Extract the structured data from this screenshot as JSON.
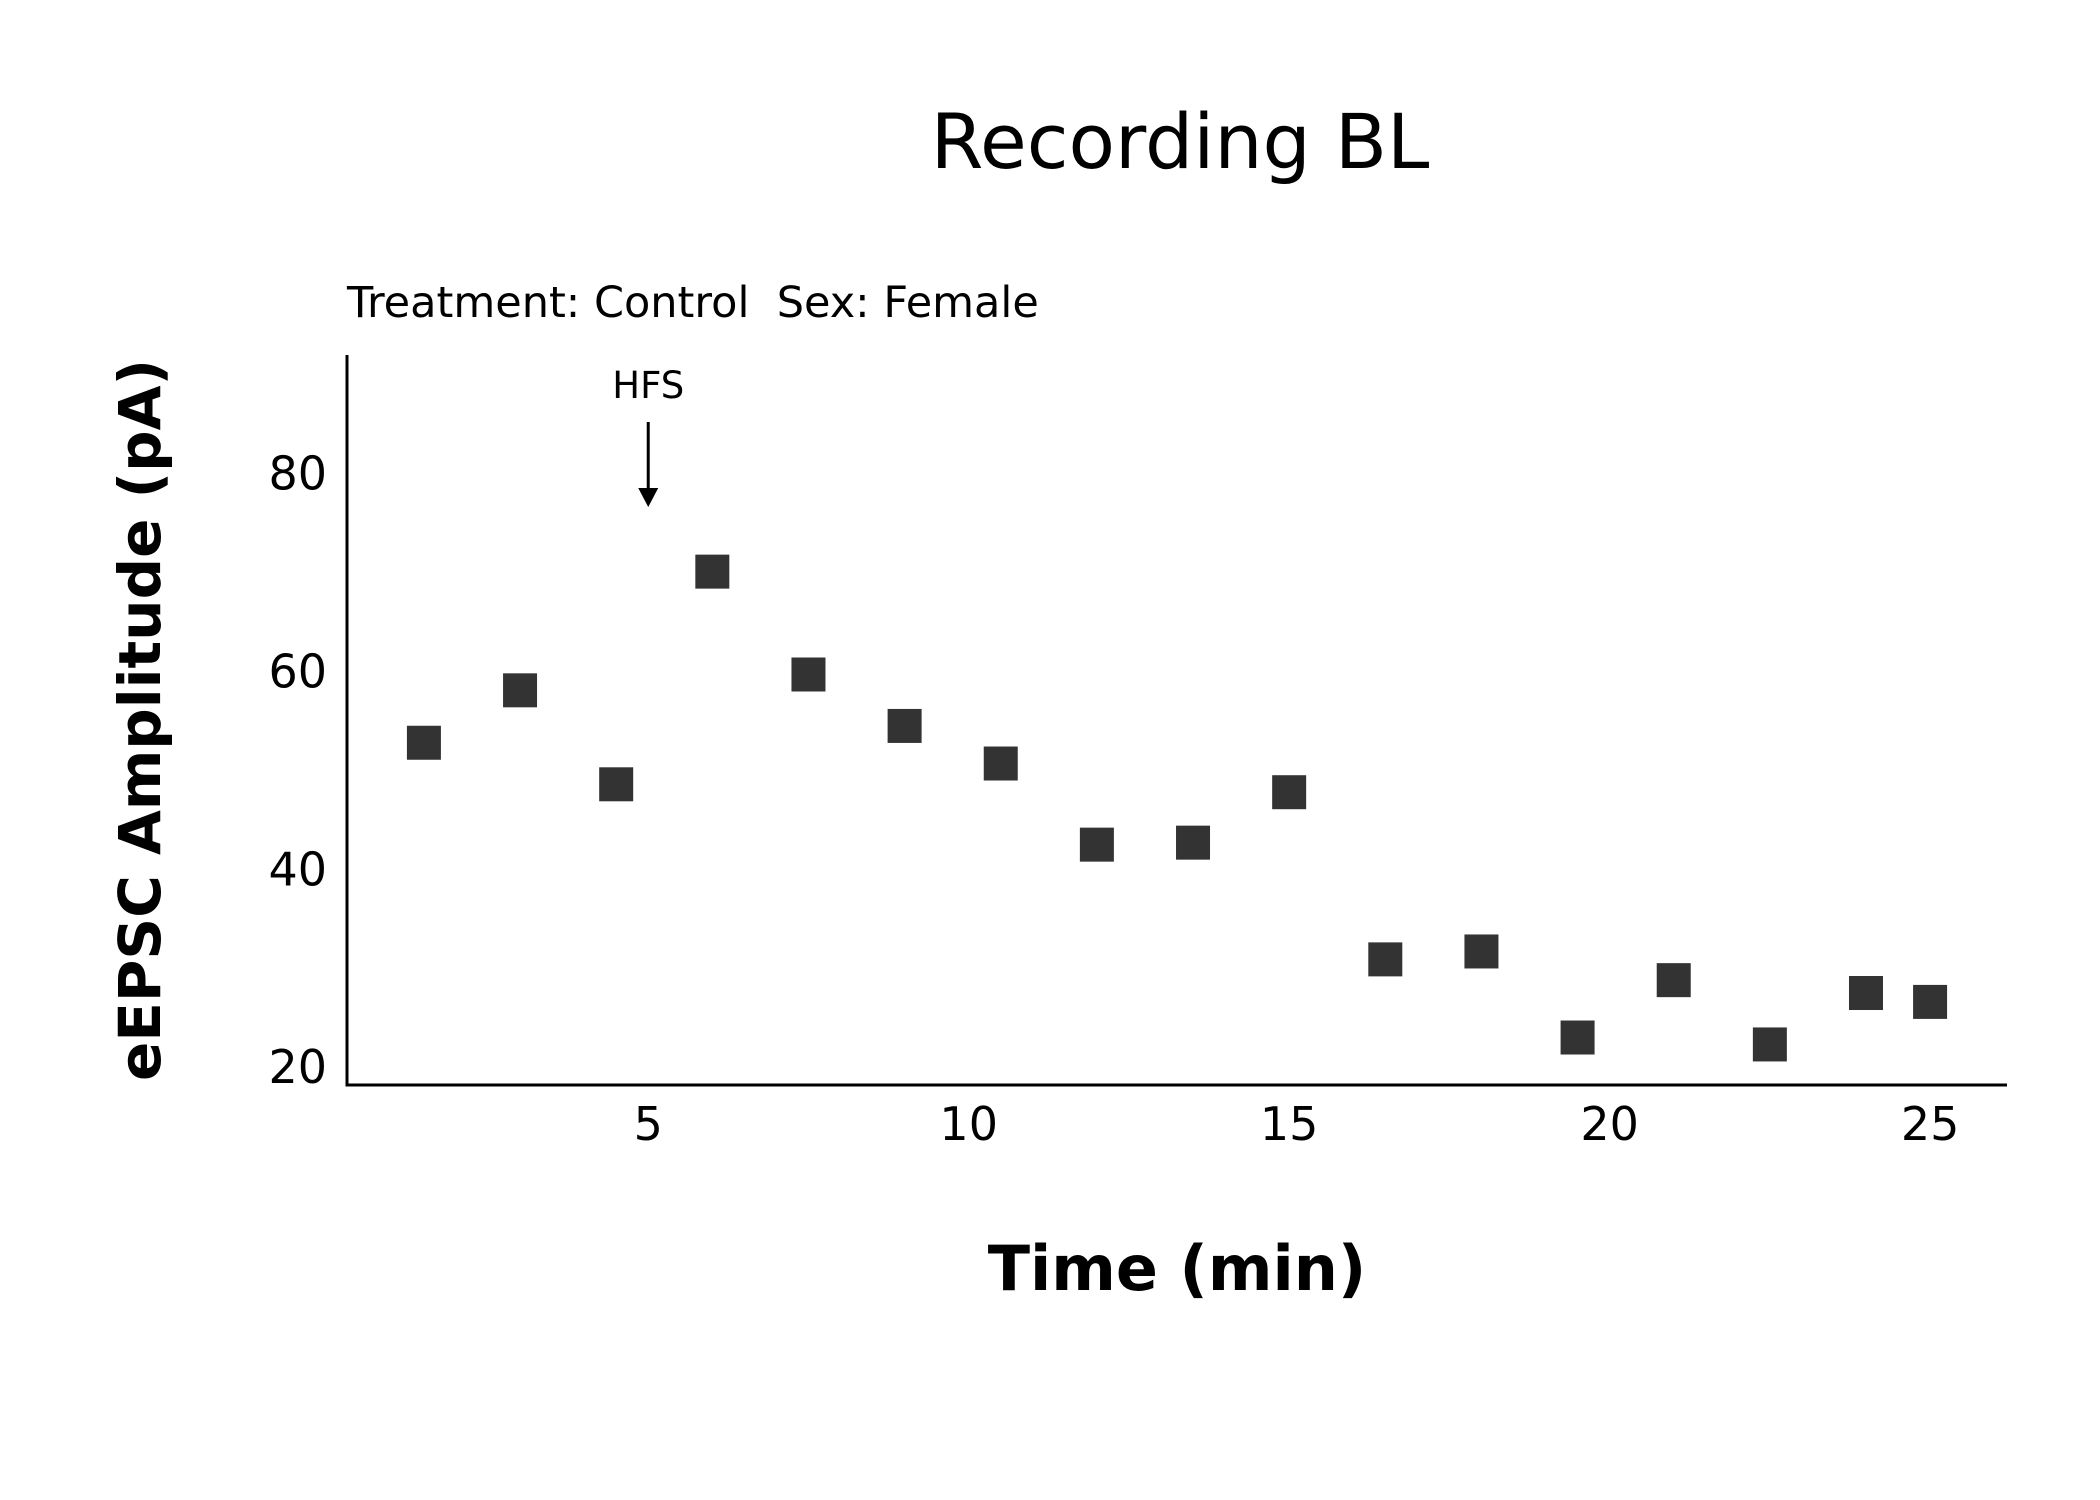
{
  "chart_data": {
    "type": "scatter",
    "title": "Recording BL",
    "subtitle": "Treatment: Control  Sex: Female",
    "xlabel": "Time (min)",
    "ylabel": "eEPSC Amplitude (pA)",
    "xlim": [
      0.3,
      26.2
    ],
    "ylim": [
      18.2,
      92
    ],
    "xticks": [
      5,
      10,
      15,
      20,
      25
    ],
    "yticks": [
      20,
      40,
      60,
      80
    ],
    "grid": false,
    "marker": "square",
    "marker_color": "#333333",
    "annotation": {
      "text": "HFS",
      "x": 5,
      "arrow": "down"
    },
    "points": [
      {
        "x": 1.5,
        "y": 52.8
      },
      {
        "x": 3.0,
        "y": 58.1
      },
      {
        "x": 4.5,
        "y": 48.6
      },
      {
        "x": 6.0,
        "y": 70.1
      },
      {
        "x": 7.5,
        "y": 59.7
      },
      {
        "x": 9.0,
        "y": 54.5
      },
      {
        "x": 10.5,
        "y": 50.7
      },
      {
        "x": 12.0,
        "y": 42.5
      },
      {
        "x": 13.5,
        "y": 42.7
      },
      {
        "x": 15.0,
        "y": 47.8
      },
      {
        "x": 16.5,
        "y": 30.9
      },
      {
        "x": 18.0,
        "y": 31.7
      },
      {
        "x": 19.5,
        "y": 23.0
      },
      {
        "x": 21.0,
        "y": 28.8
      },
      {
        "x": 22.5,
        "y": 22.3
      },
      {
        "x": 24.0,
        "y": 27.5
      },
      {
        "x": 25.0,
        "y": 26.6
      }
    ]
  }
}
